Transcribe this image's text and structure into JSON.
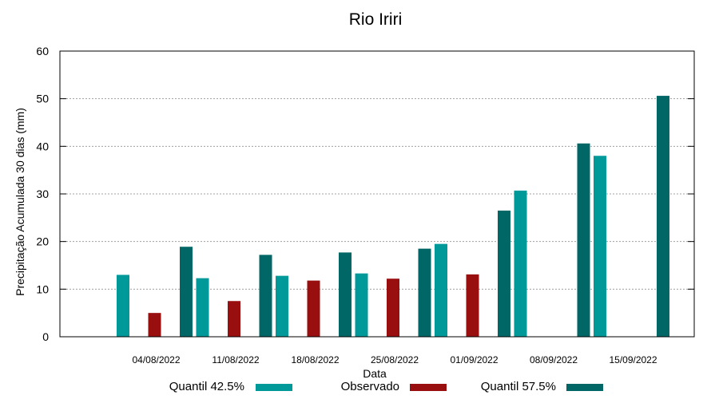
{
  "chart_data": {
    "type": "bar",
    "title": "Rio Iriri",
    "xlabel": "Data",
    "ylabel": "Precipitação Acumulada 30 dias (mm)",
    "ylim": [
      0,
      60
    ],
    "yticks": [
      "0",
      "10",
      "20",
      "30",
      "40",
      "50",
      "60"
    ],
    "categories": [
      "04/08/2022",
      "11/08/2022",
      "18/08/2022",
      "25/08/2022",
      "01/09/2022",
      "08/09/2022",
      "15/09/2022"
    ],
    "grid": true,
    "legend_position": "bottom",
    "series": [
      {
        "name": "Quantil 42.5%",
        "color": "#009999",
        "values": [
          13.0,
          12.3,
          12.8,
          13.3,
          19.5,
          30.7,
          38.0
        ]
      },
      {
        "name": "Observado",
        "color": "#990f0f",
        "values": [
          5.0,
          7.5,
          11.8,
          12.2,
          13.1,
          null,
          null
        ]
      },
      {
        "name": "Quantil 57.5%",
        "color": "#006666",
        "values": [
          18.9,
          17.2,
          17.7,
          18.5,
          26.5,
          40.6,
          50.6
        ]
      }
    ]
  }
}
